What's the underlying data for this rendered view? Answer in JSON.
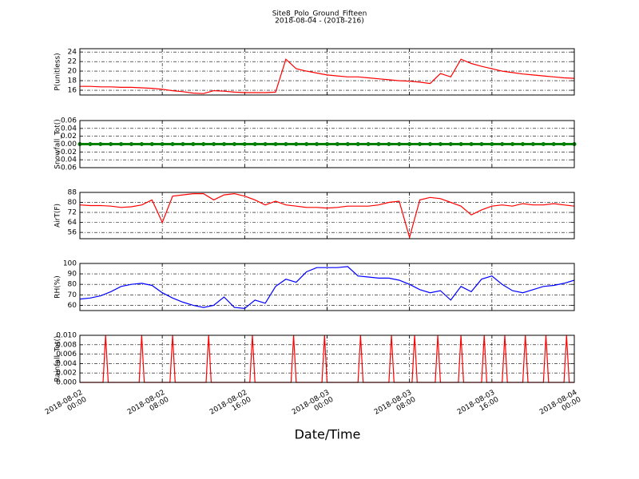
{
  "chart_data": [
    {
      "type": "line",
      "title": "Site8_Polo_Ground_Fifteen",
      "subtitle": "2018-08-04 - (2018-216)",
      "ylabel": "P(unitless)",
      "color": "#ff0000",
      "x": [
        "2018-08-02 00:00",
        "2018-08-02 01:00",
        "2018-08-02 02:00",
        "2018-08-02 03:00",
        "2018-08-02 04:00",
        "2018-08-02 05:00",
        "2018-08-02 06:00",
        "2018-08-02 07:00",
        "2018-08-02 08:00",
        "2018-08-02 09:00",
        "2018-08-02 10:00",
        "2018-08-02 11:00",
        "2018-08-02 12:00",
        "2018-08-02 13:00",
        "2018-08-02 14:00",
        "2018-08-02 15:00",
        "2018-08-02 16:00",
        "2018-08-02 17:00",
        "2018-08-02 18:00",
        "2018-08-02 19:00",
        "2018-08-02 20:00",
        "2018-08-02 21:00",
        "2018-08-02 22:00",
        "2018-08-02 23:00",
        "2018-08-03 00:00",
        "2018-08-03 01:00",
        "2018-08-03 02:00",
        "2018-08-03 03:00",
        "2018-08-03 04:00",
        "2018-08-03 05:00",
        "2018-08-03 06:00",
        "2018-08-03 07:00",
        "2018-08-03 08:00",
        "2018-08-03 09:00",
        "2018-08-03 10:00",
        "2018-08-03 11:00",
        "2018-08-03 12:00",
        "2018-08-03 13:00",
        "2018-08-03 14:00",
        "2018-08-03 15:00",
        "2018-08-03 16:00",
        "2018-08-03 17:00",
        "2018-08-03 18:00",
        "2018-08-03 19:00",
        "2018-08-03 20:00",
        "2018-08-03 21:00",
        "2018-08-03 22:00",
        "2018-08-03 23:00",
        "2018-08-04 00:00"
      ],
      "values": [
        16.8,
        16.8,
        16.7,
        16.7,
        16.6,
        16.6,
        16.5,
        16.4,
        16.2,
        15.9,
        15.7,
        15.4,
        15.3,
        15.9,
        15.8,
        15.6,
        15.5,
        15.5,
        15.5,
        15.6,
        22.5,
        20.5,
        20.0,
        19.6,
        19.2,
        19.0,
        18.8,
        18.8,
        18.6,
        18.4,
        18.2,
        18.0,
        17.9,
        17.7,
        17.4,
        19.5,
        18.8,
        22.5,
        21.6,
        21.0,
        20.5,
        20.0,
        19.7,
        19.4,
        19.2,
        19.0,
        18.8,
        18.6,
        18.5
      ],
      "xlim": [
        "2018-08-02 00:00",
        "2018-08-04 00:00"
      ],
      "ylim": [
        15,
        24.7
      ],
      "yticks": [
        16,
        18,
        20,
        22,
        24
      ],
      "grid": true
    },
    {
      "type": "line",
      "ylabel": "Snowfall_Tot()",
      "color": "#008000",
      "marker": "o",
      "x": [
        "2018-08-02 00:00",
        "2018-08-02 01:00",
        "2018-08-02 02:00",
        "2018-08-02 03:00",
        "2018-08-02 04:00",
        "2018-08-02 05:00",
        "2018-08-02 06:00",
        "2018-08-02 07:00",
        "2018-08-02 08:00",
        "2018-08-02 09:00",
        "2018-08-02 10:00",
        "2018-08-02 11:00",
        "2018-08-02 12:00",
        "2018-08-02 13:00",
        "2018-08-02 14:00",
        "2018-08-02 15:00",
        "2018-08-02 16:00",
        "2018-08-02 17:00",
        "2018-08-02 18:00",
        "2018-08-02 19:00",
        "2018-08-02 20:00",
        "2018-08-02 21:00",
        "2018-08-02 22:00",
        "2018-08-02 23:00",
        "2018-08-03 00:00",
        "2018-08-03 01:00",
        "2018-08-03 02:00",
        "2018-08-03 03:00",
        "2018-08-03 04:00",
        "2018-08-03 05:00",
        "2018-08-03 06:00",
        "2018-08-03 07:00",
        "2018-08-03 08:00",
        "2018-08-03 09:00",
        "2018-08-03 10:00",
        "2018-08-03 11:00",
        "2018-08-03 12:00",
        "2018-08-03 13:00",
        "2018-08-03 14:00",
        "2018-08-03 15:00",
        "2018-08-03 16:00",
        "2018-08-03 17:00",
        "2018-08-03 18:00",
        "2018-08-03 19:00",
        "2018-08-03 20:00",
        "2018-08-03 21:00",
        "2018-08-03 22:00",
        "2018-08-03 23:00",
        "2018-08-04 00:00"
      ],
      "values": [
        0,
        0,
        0,
        0,
        0,
        0,
        0,
        0,
        0,
        0,
        0,
        0,
        0,
        0,
        0,
        0,
        0,
        0,
        0,
        0,
        0,
        0,
        0,
        0,
        0,
        0,
        0,
        0,
        0,
        0,
        0,
        0,
        0,
        0,
        0,
        0,
        0,
        0,
        0,
        0,
        0,
        0,
        0,
        0,
        0,
        0,
        0,
        0,
        0
      ],
      "xlim": [
        "2018-08-02 00:00",
        "2018-08-04 00:00"
      ],
      "ylim": [
        -0.06,
        0.06
      ],
      "yticks": [
        -0.06,
        -0.04,
        -0.02,
        {
          "value": 0,
          "label": "0.00"
        },
        0.02,
        0.04,
        0.06
      ],
      "grid": true
    },
    {
      "type": "line",
      "ylabel": "AirT(F)",
      "color": "#ff0000",
      "x": [
        "2018-08-02 00:00",
        "2018-08-02 01:00",
        "2018-08-02 02:00",
        "2018-08-02 03:00",
        "2018-08-02 04:00",
        "2018-08-02 05:00",
        "2018-08-02 06:00",
        "2018-08-02 07:00",
        "2018-08-02 08:00",
        "2018-08-02 09:00",
        "2018-08-02 10:00",
        "2018-08-02 11:00",
        "2018-08-02 12:00",
        "2018-08-02 13:00",
        "2018-08-02 14:00",
        "2018-08-02 15:00",
        "2018-08-02 16:00",
        "2018-08-02 17:00",
        "2018-08-02 18:00",
        "2018-08-02 19:00",
        "2018-08-02 20:00",
        "2018-08-02 21:00",
        "2018-08-02 22:00",
        "2018-08-02 23:00",
        "2018-08-03 00:00",
        "2018-08-03 01:00",
        "2018-08-03 02:00",
        "2018-08-03 03:00",
        "2018-08-03 04:00",
        "2018-08-03 05:00",
        "2018-08-03 06:00",
        "2018-08-03 07:00",
        "2018-08-03 08:00",
        "2018-08-03 09:00",
        "2018-08-03 10:00",
        "2018-08-03 11:00",
        "2018-08-03 12:00",
        "2018-08-03 13:00",
        "2018-08-03 14:00",
        "2018-08-03 15:00",
        "2018-08-03 16:00",
        "2018-08-03 17:00",
        "2018-08-03 18:00",
        "2018-08-03 19:00",
        "2018-08-03 20:00",
        "2018-08-03 21:00",
        "2018-08-03 22:00",
        "2018-08-03 23:00",
        "2018-08-04 00:00"
      ],
      "values": [
        78,
        77.5,
        77.5,
        77,
        76,
        76.5,
        78,
        82,
        64,
        85,
        86,
        87,
        87,
        82,
        86,
        87,
        85,
        82,
        78,
        81,
        78,
        77,
        76,
        76,
        75.5,
        76,
        77,
        77,
        77,
        78,
        80,
        81,
        52,
        82,
        84,
        83,
        80,
        77,
        70,
        74,
        77,
        78,
        77,
        79,
        78,
        78,
        79,
        78,
        77
      ],
      "xlim": [
        "2018-08-02 00:00",
        "2018-08-04 00:00"
      ],
      "ylim": [
        51,
        88
      ],
      "yticks": [
        56,
        64,
        72,
        80,
        88
      ],
      "grid": true
    },
    {
      "type": "line",
      "ylabel": "RH(%)",
      "color": "#0000ff",
      "x": [
        "2018-08-02 00:00",
        "2018-08-02 01:00",
        "2018-08-02 02:00",
        "2018-08-02 03:00",
        "2018-08-02 04:00",
        "2018-08-02 05:00",
        "2018-08-02 06:00",
        "2018-08-02 07:00",
        "2018-08-02 08:00",
        "2018-08-02 09:00",
        "2018-08-02 10:00",
        "2018-08-02 11:00",
        "2018-08-02 12:00",
        "2018-08-02 13:00",
        "2018-08-02 14:00",
        "2018-08-02 15:00",
        "2018-08-02 16:00",
        "2018-08-02 17:00",
        "2018-08-02 18:00",
        "2018-08-02 19:00",
        "2018-08-02 20:00",
        "2018-08-02 21:00",
        "2018-08-02 22:00",
        "2018-08-02 23:00",
        "2018-08-03 00:00",
        "2018-08-03 01:00",
        "2018-08-03 02:00",
        "2018-08-03 03:00",
        "2018-08-03 04:00",
        "2018-08-03 05:00",
        "2018-08-03 06:00",
        "2018-08-03 07:00",
        "2018-08-03 08:00",
        "2018-08-03 09:00",
        "2018-08-03 10:00",
        "2018-08-03 11:00",
        "2018-08-03 12:00",
        "2018-08-03 13:00",
        "2018-08-03 14:00",
        "2018-08-03 15:00",
        "2018-08-03 16:00",
        "2018-08-03 17:00",
        "2018-08-03 18:00",
        "2018-08-03 19:00",
        "2018-08-03 20:00",
        "2018-08-03 21:00",
        "2018-08-03 22:00",
        "2018-08-03 23:00",
        "2018-08-04 00:00"
      ],
      "values": [
        66,
        67,
        69,
        73,
        78,
        80,
        81,
        79,
        72,
        67,
        63,
        60,
        58,
        60,
        68,
        58,
        57,
        65,
        62,
        78,
        85,
        82,
        92,
        96,
        96,
        96,
        97,
        88,
        87,
        86,
        86,
        84,
        80,
        75,
        72,
        74,
        65,
        78,
        73,
        85,
        88,
        80,
        74,
        72,
        75,
        78,
        79,
        81,
        84
      ],
      "xlim": [
        "2018-08-02 00:00",
        "2018-08-04 00:00"
      ],
      "ylim": [
        55,
        100
      ],
      "yticks": [
        60,
        70,
        80,
        90,
        100
      ],
      "grid": true
    },
    {
      "type": "line",
      "ylabel": "Rainfall_Tot()",
      "xlabel": "Date/Time",
      "color": "#ff0000",
      "x": [
        "2018-08-02 00:00",
        "2018-08-02 02:15",
        "2018-08-02 02:30",
        "2018-08-02 02:45",
        "2018-08-02 05:45",
        "2018-08-02 06:00",
        "2018-08-02 06:15",
        "2018-08-02 08:45",
        "2018-08-02 09:00",
        "2018-08-02 09:15",
        "2018-08-02 12:15",
        "2018-08-02 12:30",
        "2018-08-02 12:45",
        "2018-08-02 16:30",
        "2018-08-02 16:45",
        "2018-08-02 17:00",
        "2018-08-02 20:30",
        "2018-08-02 20:45",
        "2018-08-02 21:00",
        "2018-08-02 23:30",
        "2018-08-02 23:45",
        "2018-08-03 00:00",
        "2018-08-03 03:00",
        "2018-08-03 03:15",
        "2018-08-03 03:30",
        "2018-08-03 06:00",
        "2018-08-03 06:15",
        "2018-08-03 06:30",
        "2018-08-03 08:15",
        "2018-08-03 08:30",
        "2018-08-03 08:45",
        "2018-08-03 10:30",
        "2018-08-03 10:45",
        "2018-08-03 11:00",
        "2018-08-03 12:45",
        "2018-08-03 13:00",
        "2018-08-03 13:15",
        "2018-08-03 15:00",
        "2018-08-03 15:15",
        "2018-08-03 15:30",
        "2018-08-03 17:00",
        "2018-08-03 17:15",
        "2018-08-03 17:30",
        "2018-08-03 19:00",
        "2018-08-03 19:15",
        "2018-08-03 19:30",
        "2018-08-03 21:00",
        "2018-08-03 21:15",
        "2018-08-03 21:30",
        "2018-08-03 23:00",
        "2018-08-03 23:15",
        "2018-08-03 23:30",
        "2018-08-04 00:00"
      ],
      "values": [
        0,
        0,
        0.01,
        0,
        0,
        0.01,
        0,
        0,
        0.01,
        0,
        0,
        0.01,
        0,
        0,
        0.01,
        0,
        0,
        0.01,
        0,
        0,
        0.01,
        0,
        0,
        0.01,
        0,
        0,
        0.01,
        0,
        0,
        0.01,
        0,
        0,
        0.01,
        0,
        0,
        0.01,
        0,
        0,
        0.01,
        0,
        0,
        0.01,
        0,
        0,
        0.01,
        0,
        0,
        0.01,
        0,
        0,
        0.01,
        0,
        0
      ],
      "xlim": [
        "2018-08-02 00:00",
        "2018-08-04 00:00"
      ],
      "ylim": [
        0,
        0.01
      ],
      "yticks": [
        {
          "value": 0,
          "label": "0.000"
        },
        0.002,
        0.004,
        0.006,
        0.008,
        {
          "value": 0.01,
          "label": "0.010"
        }
      ],
      "xticks": [
        {
          "value": "2018-08-02 00:00",
          "label": "2018-08-02\n00:00"
        },
        {
          "value": "2018-08-02 08:00",
          "label": "2018-08-02\n08:00"
        },
        {
          "value": "2018-08-02 16:00",
          "label": "2018-08-02\n16:00"
        },
        {
          "value": "2018-08-03 00:00",
          "label": "2018-08-03\n00:00"
        },
        {
          "value": "2018-08-03 08:00",
          "label": "2018-08-03\n08:00"
        },
        {
          "value": "2018-08-03 16:00",
          "label": "2018-08-03\n16:00"
        },
        {
          "value": "2018-08-04 00:00",
          "label": "2018-08-04\n00:00"
        }
      ],
      "grid": true
    }
  ]
}
